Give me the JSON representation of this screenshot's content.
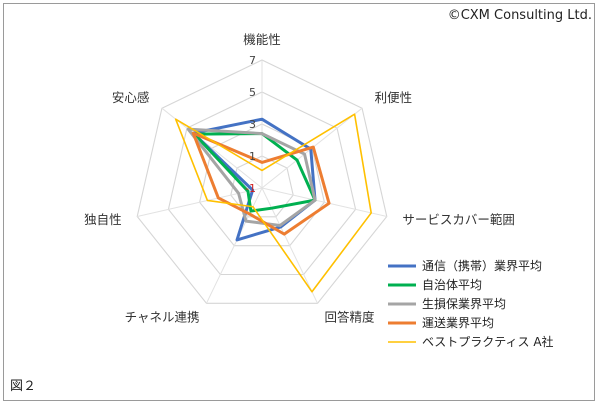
{
  "header": {
    "copyright": "©CXM Consulting Ltd."
  },
  "footer": {
    "figure_label": "図２"
  },
  "chart_data": {
    "type": "radar",
    "axes": [
      "機能性",
      "利便性",
      "サービスカバー範囲",
      "回答精度",
      "チャネル連携",
      "独自性",
      "安心感"
    ],
    "range": [
      -1,
      7
    ],
    "ticks": [
      {
        "value": -1,
        "label": "-1"
      },
      {
        "value": 1,
        "label": "1"
      },
      {
        "value": 3,
        "label": "3"
      },
      {
        "value": 5,
        "label": "5"
      },
      {
        "value": 7,
        "label": "7"
      }
    ],
    "gridlines": [
      -1,
      1,
      3,
      5,
      7
    ],
    "series": [
      {
        "name": "通信（携帯）業界平均",
        "color": "#4472C4",
        "width": 3,
        "values": [
          3.3,
          2.9,
          2.4,
          1.7,
          2.6,
          -0.4,
          4.5
        ]
      },
      {
        "name": "自治体平均",
        "color": "#00B050",
        "width": 3,
        "values": [
          2.4,
          1.8,
          2.4,
          0.4,
          0.6,
          -0.1,
          4.4
        ]
      },
      {
        "name": "生損保業界平均",
        "color": "#A5A5A5",
        "width": 3,
        "values": [
          2.4,
          2.4,
          2.4,
          1.6,
          1.3,
          0.5,
          4.9
        ]
      },
      {
        "name": "運送業界平均",
        "color": "#ED7D31",
        "width": 3,
        "values": [
          0.6,
          3.1,
          3.3,
          2.2,
          0.8,
          1.8,
          4.5
        ]
      },
      {
        "name": "ベストプラクティス A社",
        "color": "#FFC000",
        "width": 1.6,
        "values": [
          0.1,
          6.4,
          6.0,
          6.2,
          0.3,
          2.5,
          5.9
        ]
      }
    ],
    "legend_position": "bottom-right"
  }
}
